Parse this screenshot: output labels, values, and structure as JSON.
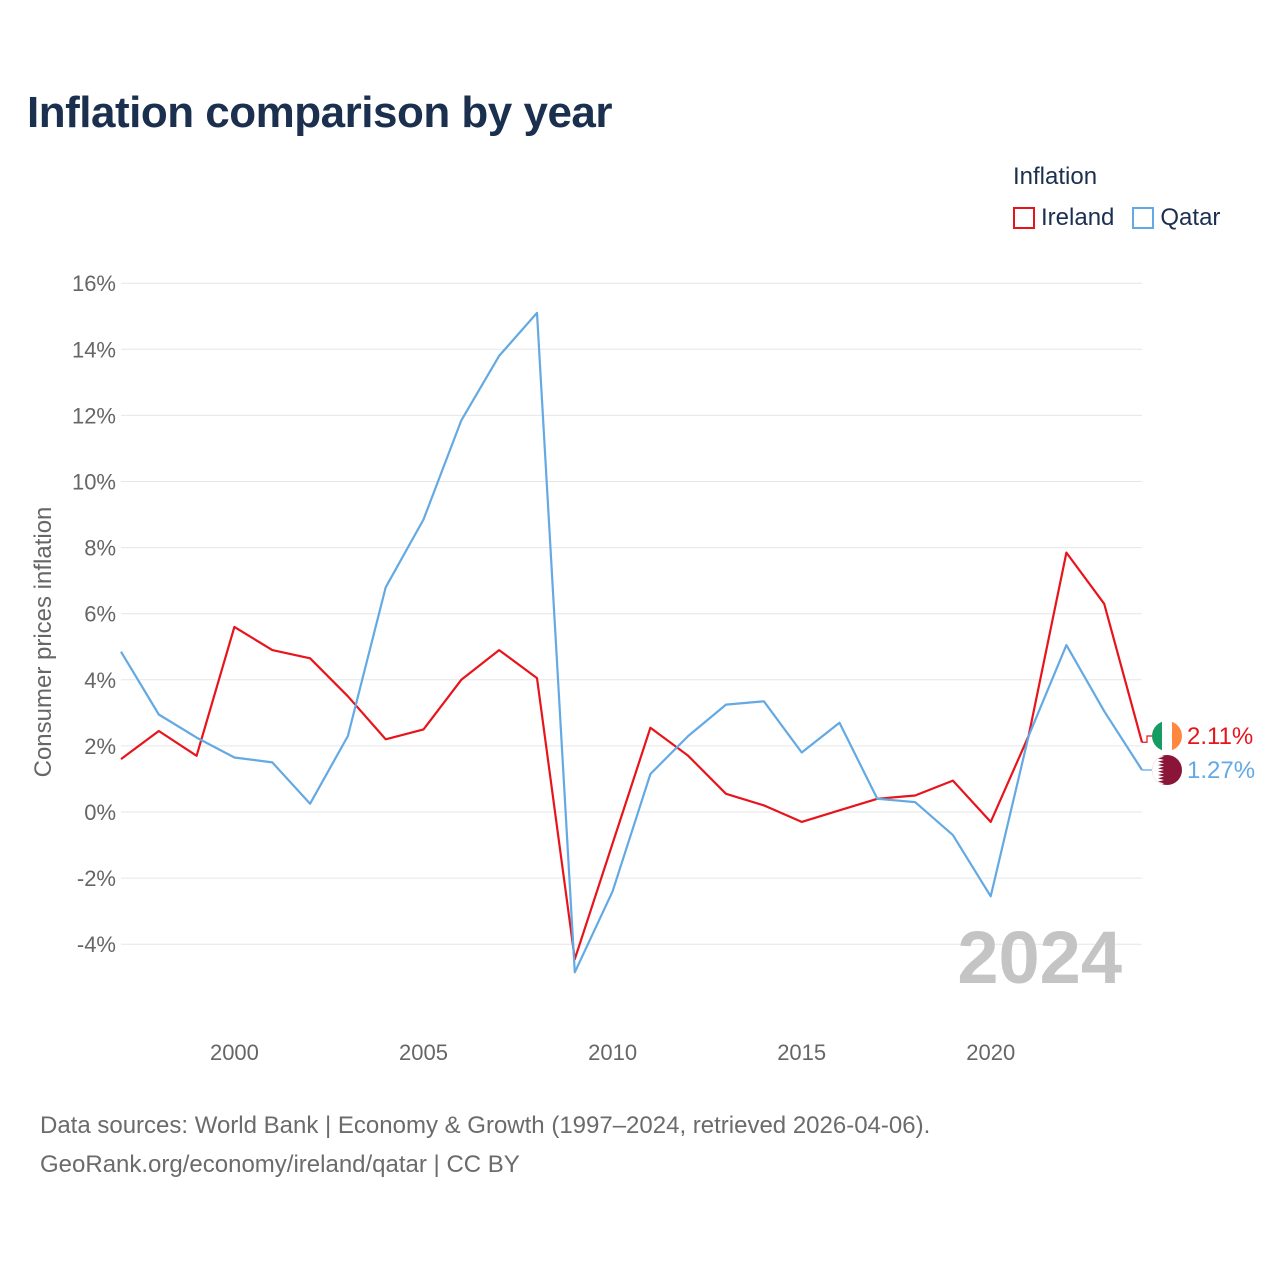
{
  "title": "Inflation comparison by year",
  "legend": {
    "title": "Inflation",
    "items": [
      {
        "label": "Ireland",
        "color": "#e8141b"
      },
      {
        "label": "Qatar",
        "color": "#63a9e3"
      }
    ]
  },
  "footer": {
    "line1": "Data sources: World Bank | Economy & Growth (1997–2024, retrieved 2026-04-06).",
    "line2": "GeoRank.org/economy/ireland/qatar | CC BY"
  },
  "chart_data": {
    "type": "line",
    "title": "Inflation comparison by year",
    "ylabel": "Consumer prices inflation",
    "xlabel": "",
    "year_watermark": "2024",
    "xlim": [
      1997,
      2024
    ],
    "ylim": [
      -5,
      16
    ],
    "yticks": [
      -4,
      -2,
      0,
      2,
      4,
      6,
      8,
      10,
      12,
      14,
      16
    ],
    "ytick_labels": [
      "-4%",
      "-2%",
      "0%",
      "2%",
      "4%",
      "6%",
      "8%",
      "10%",
      "12%",
      "14%",
      "16%"
    ],
    "xticks": [
      2000,
      2005,
      2010,
      2015,
      2020
    ],
    "xtick_labels": [
      "2000",
      "2005",
      "2010",
      "2015",
      "2020"
    ],
    "x": [
      1997,
      1998,
      1999,
      2000,
      2001,
      2002,
      2003,
      2004,
      2005,
      2006,
      2007,
      2008,
      2009,
      2010,
      2011,
      2012,
      2013,
      2014,
      2015,
      2016,
      2017,
      2018,
      2019,
      2020,
      2021,
      2022,
      2023,
      2024
    ],
    "series": [
      {
        "name": "Ireland",
        "color": "#e8141b",
        "end_label": "2.11%",
        "flag": "ireland-flag",
        "values": [
          1.6,
          2.45,
          1.7,
          5.6,
          4.9,
          4.65,
          3.5,
          2.2,
          2.5,
          4.0,
          4.9,
          4.05,
          -4.45,
          -0.95,
          2.55,
          1.7,
          0.55,
          0.2,
          -0.3,
          0.05,
          0.4,
          0.5,
          0.95,
          -0.3,
          2.3,
          7.85,
          6.3,
          2.11
        ]
      },
      {
        "name": "Qatar",
        "color": "#63a9e3",
        "end_label": "1.27%",
        "flag": "qatar-flag",
        "values": [
          4.85,
          2.95,
          2.25,
          1.65,
          1.5,
          0.25,
          2.3,
          6.8,
          8.85,
          11.85,
          13.8,
          15.1,
          -4.85,
          -2.4,
          1.15,
          2.3,
          3.25,
          3.35,
          1.8,
          2.7,
          0.4,
          0.3,
          -0.7,
          -2.55,
          2.3,
          5.05,
          3.05,
          1.27
        ]
      }
    ]
  }
}
